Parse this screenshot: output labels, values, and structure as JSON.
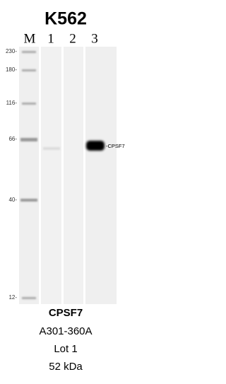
{
  "title": "K562",
  "lanes": [
    "M",
    "1",
    "2",
    "3"
  ],
  "markers": [
    "230-",
    "180-",
    "116-",
    "66-",
    "40-",
    "12-"
  ],
  "band_label": "-CPSF7",
  "caption": [
    "CPSF7",
    "A301-360A",
    "Lot 1",
    "52 kDa"
  ]
}
